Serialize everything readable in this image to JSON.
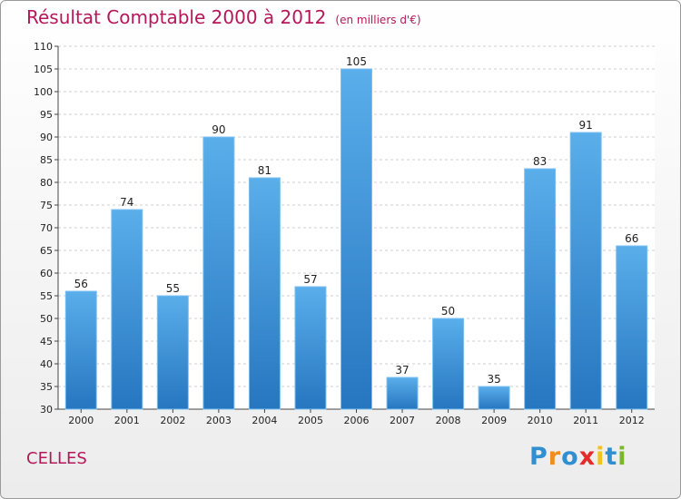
{
  "chart_data": {
    "type": "bar",
    "title": "Résultat Comptable 2000 à 2012",
    "subtitle": "(en milliers d'€)",
    "categories": [
      "2000",
      "2001",
      "2002",
      "2003",
      "2004",
      "2005",
      "2006",
      "2007",
      "2008",
      "2009",
      "2010",
      "2011",
      "2012"
    ],
    "values": [
      56,
      74,
      55,
      90,
      81,
      57,
      105,
      37,
      50,
      35,
      83,
      91,
      66
    ],
    "ylim": [
      30,
      110
    ],
    "yticks": [
      30,
      35,
      40,
      45,
      50,
      55,
      60,
      65,
      70,
      75,
      80,
      85,
      90,
      95,
      100,
      105,
      110
    ],
    "xlabel": "",
    "ylabel": "",
    "grid": true,
    "bar_color": "#3d8fd6",
    "bar_color_light": "#5aaeea",
    "bar_color_dark": "#2676c0"
  },
  "place_name": "CELLES",
  "logo": {
    "letters": [
      "P",
      "r",
      "o",
      "x",
      "i",
      "t",
      "i"
    ],
    "colors": [
      "#2f8fd0",
      "#f28c1e",
      "#2f8fd0",
      "#e32b2b",
      "#f2c21e",
      "#2f8fd0",
      "#7ab829"
    ]
  },
  "colors": {
    "accent": "#b5185a"
  }
}
